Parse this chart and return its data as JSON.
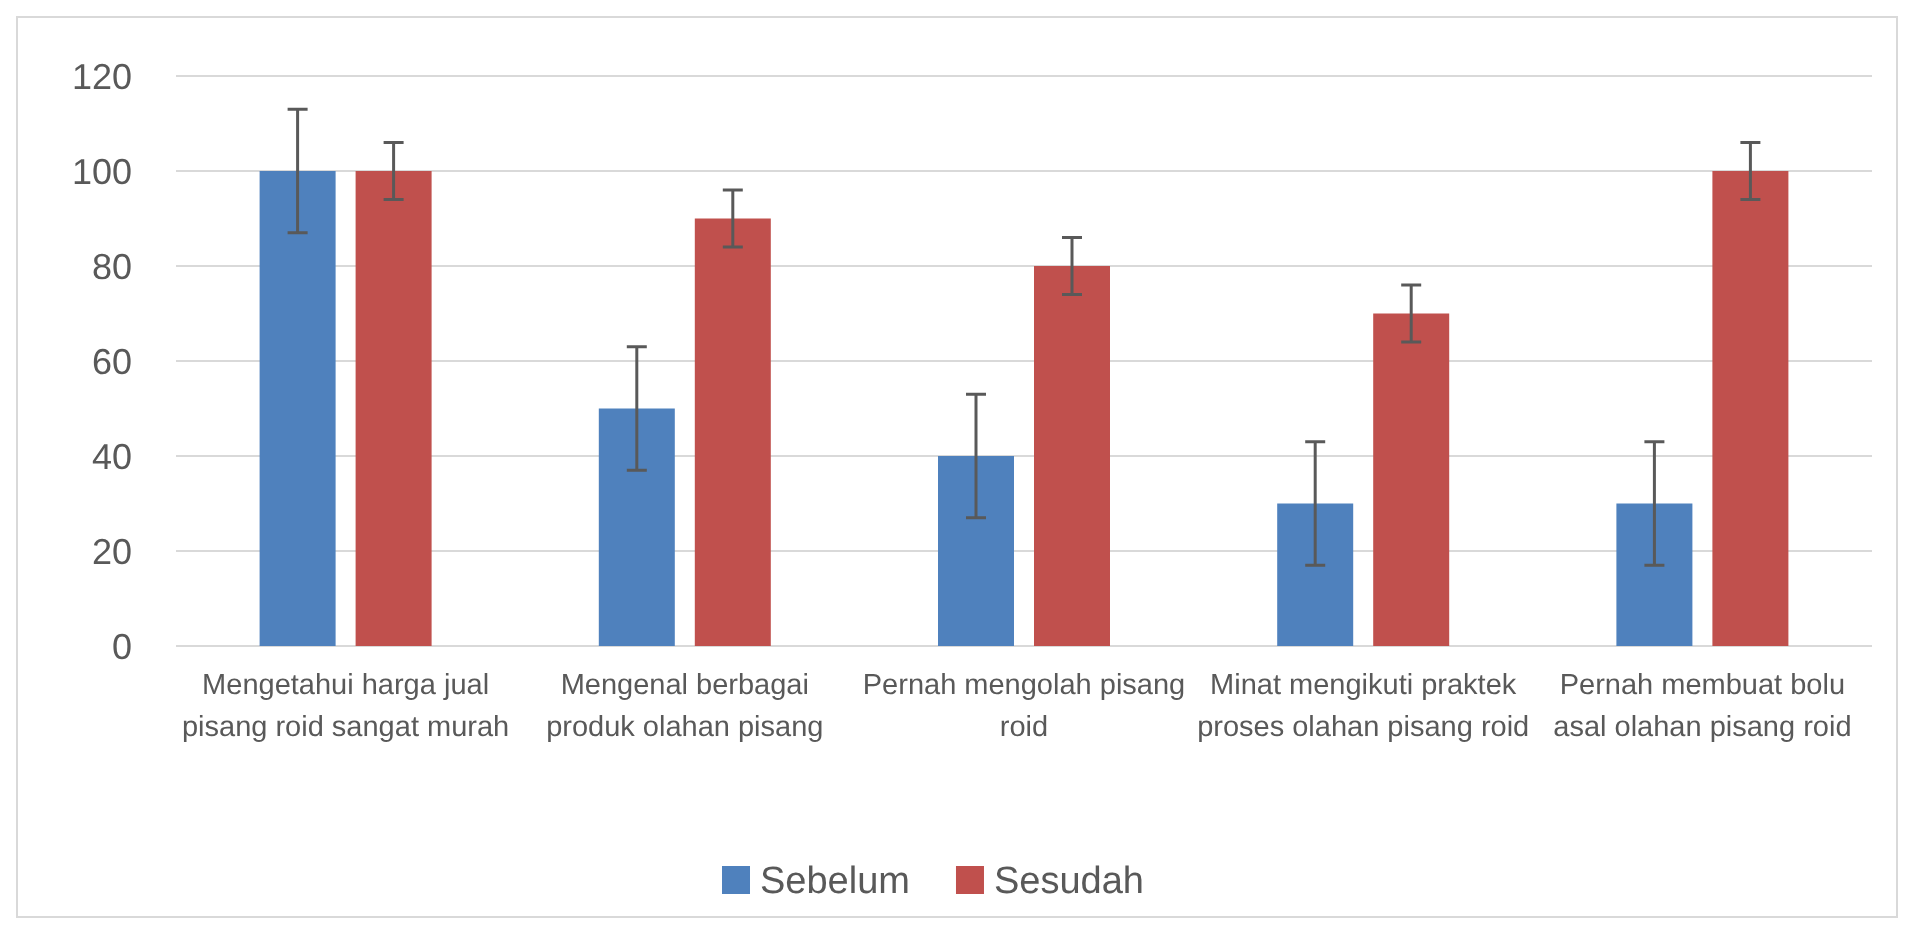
{
  "chart_data": {
    "type": "bar",
    "categories": [
      "Mengetahui harga jual pisang roid sangat murah",
      "Mengenal berbagai produk olahan pisang",
      "Pernah mengolah pisang roid",
      "Minat mengikuti praktek proses olahan pisang roid",
      "Pernah membuat bolu asal olahan pisang roid"
    ],
    "series": [
      {
        "name": "Sebelum",
        "color": "#4f81bd",
        "values": [
          100,
          50,
          40,
          30,
          30
        ],
        "errors": [
          13,
          13,
          13,
          13,
          13
        ]
      },
      {
        "name": "Sesudah",
        "color": "#c0504d",
        "values": [
          100,
          90,
          80,
          70,
          100
        ],
        "errors": [
          6,
          6,
          6,
          6,
          6
        ]
      }
    ],
    "ylim": [
      0,
      120
    ],
    "yticks": [
      0,
      20,
      40,
      60,
      80,
      100,
      120
    ],
    "grid": "y",
    "legend": "bottom"
  }
}
